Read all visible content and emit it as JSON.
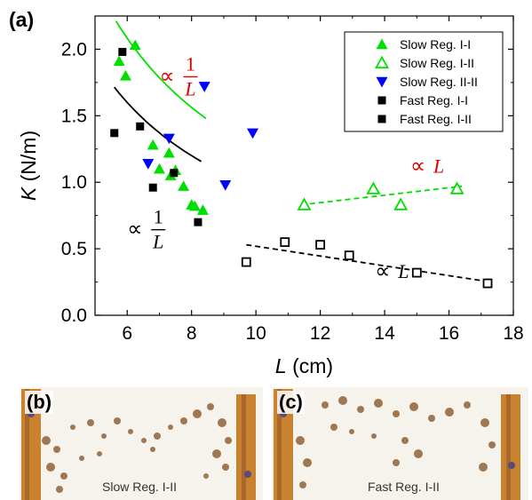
{
  "chart_data": {
    "type": "scatter",
    "panel_label": "(a)",
    "xlabel": "L (cm)",
    "ylabel": "K (N/m)",
    "xlim": [
      5,
      18
    ],
    "ylim": [
      0,
      2.25
    ],
    "x_ticks": [
      6,
      8,
      10,
      12,
      14,
      16,
      18
    ],
    "y_ticks": [
      0.0,
      0.5,
      1.0,
      1.5,
      2.0
    ],
    "x_tick_labels": [
      "6",
      "8",
      "10",
      "12",
      "14",
      "16",
      "18"
    ],
    "y_tick_labels": [
      "0.0",
      "0.5",
      "1.0",
      "1.5",
      "2.0"
    ],
    "grid": false,
    "legend_position": "top-right",
    "series": [
      {
        "name": "Slow Reg. I-I",
        "marker": "triangle-up-filled",
        "color": "#00e000",
        "x": [
          5.75,
          5.95,
          6.25,
          6.8,
          7.0,
          7.3,
          7.35,
          7.5,
          7.75,
          8.0,
          8.1,
          8.35
        ],
        "y": [
          1.91,
          1.8,
          2.03,
          1.28,
          1.1,
          1.22,
          1.05,
          1.09,
          0.97,
          0.83,
          0.82,
          0.79
        ]
      },
      {
        "name": "Slow Reg. I-II",
        "marker": "triangle-up-open",
        "color": "#00e000",
        "x": [
          11.5,
          13.65,
          14.5,
          16.25
        ],
        "y": [
          0.83,
          0.95,
          0.83,
          0.95
        ]
      },
      {
        "name": "Slow Reg. II-II",
        "marker": "triangle-down-filled",
        "color": "#0000ff",
        "x": [
          6.65,
          7.3,
          8.4,
          9.05,
          9.9
        ],
        "y": [
          1.14,
          1.33,
          1.72,
          0.98,
          1.37
        ]
      },
      {
        "name": "Fast Reg. I-I",
        "marker": "square-filled",
        "color": "#000000",
        "x": [
          5.6,
          5.85,
          6.4,
          6.8,
          7.45,
          8.2
        ],
        "y": [
          1.37,
          1.98,
          1.42,
          0.96,
          1.07,
          0.7
        ]
      },
      {
        "name": "Fast Reg. I-II",
        "marker": "square-open",
        "color": "#000000",
        "x": [
          9.7,
          10.9,
          12.0,
          12.9,
          15.0,
          17.2
        ],
        "y": [
          0.4,
          0.55,
          0.53,
          0.45,
          0.32,
          0.24
        ]
      }
    ],
    "legend_extra": {
      "name": "Fast Reg. I-II",
      "marker": "square-filled",
      "color": "#000000"
    },
    "fits": [
      {
        "label": "∝ 1/L",
        "color": "#00e000",
        "dash": false,
        "form": "a/L",
        "a": 12.5,
        "x_range": [
          5.65,
          8.45
        ]
      },
      {
        "label": "∝ 1/L",
        "color": "#000000",
        "dash": false,
        "form": "a/L",
        "a": 9.6,
        "x_range": [
          5.6,
          8.3
        ]
      },
      {
        "label": "∝ L",
        "color": "#00e000",
        "dash": true,
        "form": "linear",
        "x_range": [
          11.4,
          16.4
        ],
        "y_range": [
          0.83,
          0.97
        ]
      },
      {
        "label": "∝ L",
        "color": "#000000",
        "dash": true,
        "form": "linear",
        "x_range": [
          9.7,
          17.3
        ],
        "y_range": [
          0.53,
          0.25
        ]
      }
    ],
    "annotations": [
      {
        "prefix": "∝",
        "numerator": "1",
        "denominator": "L",
        "color": "#e00000",
        "x": 7.0,
        "y": 1.8
      },
      {
        "prefix": "∝",
        "numerator": "1",
        "denominator": "L",
        "color": "#000000",
        "x": 6.0,
        "y": 0.65
      },
      {
        "prefix": "∝",
        "text": "L",
        "color": "#e00000",
        "x": 14.8,
        "y": 1.07
      },
      {
        "prefix": "∝",
        "text": "L",
        "color": "#000000",
        "x": 13.7,
        "y": 0.28
      }
    ]
  },
  "panel_b": {
    "label": "(b)",
    "caption": "Slow Reg. I-II"
  },
  "panel_c": {
    "label": "(c)",
    "caption": "Fast Reg. I-II"
  }
}
